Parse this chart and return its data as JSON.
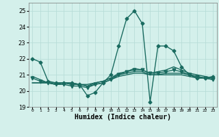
{
  "title": "",
  "xlabel": "Humidex (Indice chaleur)",
  "bg_color": "#d4f0eb",
  "grid_color": "#b8ddd8",
  "line_color": "#1a6b60",
  "xlim": [
    -0.5,
    23.5
  ],
  "ylim": [
    19.0,
    25.5
  ],
  "yticks": [
    19,
    20,
    21,
    22,
    23,
    24,
    25
  ],
  "xticks": [
    0,
    1,
    2,
    3,
    4,
    5,
    6,
    7,
    8,
    9,
    10,
    11,
    12,
    13,
    14,
    15,
    16,
    17,
    18,
    19,
    20,
    21,
    22,
    23
  ],
  "series": [
    {
      "x": [
        0,
        1,
        2,
        3,
        4,
        5,
        6,
        7,
        8,
        9,
        10,
        11,
        12,
        13,
        14,
        15,
        16,
        17,
        18,
        19,
        20,
        21,
        22,
        23
      ],
      "y": [
        22.0,
        21.8,
        20.6,
        20.5,
        20.5,
        20.5,
        20.4,
        19.7,
        19.9,
        20.5,
        21.0,
        22.8,
        24.5,
        25.0,
        24.2,
        19.3,
        22.8,
        22.8,
        22.5,
        21.5,
        21.0,
        20.8,
        20.8,
        20.9
      ],
      "marker": "D",
      "markersize": 2.5,
      "linewidth": 1.0
    },
    {
      "x": [
        0,
        1,
        2,
        3,
        4,
        5,
        6,
        7,
        8,
        9,
        10,
        11,
        12,
        13,
        14,
        15,
        16,
        17,
        18,
        19,
        20,
        21,
        22,
        23
      ],
      "y": [
        20.5,
        20.5,
        20.5,
        20.4,
        20.5,
        20.5,
        20.4,
        20.4,
        20.5,
        20.6,
        20.8,
        21.0,
        21.1,
        21.2,
        21.2,
        21.0,
        21.0,
        21.1,
        21.1,
        21.1,
        21.0,
        20.9,
        20.8,
        20.8
      ],
      "marker": null,
      "markersize": 0,
      "linewidth": 1.0
    },
    {
      "x": [
        0,
        1,
        2,
        3,
        4,
        5,
        6,
        7,
        8,
        9,
        10,
        11,
        12,
        13,
        14,
        15,
        16,
        17,
        18,
        19,
        20,
        21,
        22,
        23
      ],
      "y": [
        20.5,
        20.5,
        20.5,
        20.4,
        20.5,
        20.4,
        20.4,
        20.3,
        20.4,
        20.5,
        20.7,
        20.9,
        21.0,
        21.1,
        21.1,
        21.0,
        21.0,
        21.0,
        21.0,
        21.0,
        20.9,
        20.8,
        20.8,
        20.7
      ],
      "marker": null,
      "markersize": 0,
      "linewidth": 1.0
    },
    {
      "x": [
        0,
        1,
        2,
        3,
        4,
        5,
        6,
        7,
        8,
        9,
        10,
        11,
        12,
        13,
        14,
        15,
        16,
        17,
        18,
        19,
        20,
        21,
        22,
        23
      ],
      "y": [
        20.8,
        20.6,
        20.5,
        20.4,
        20.4,
        20.3,
        20.3,
        20.2,
        20.4,
        20.5,
        20.7,
        21.0,
        21.2,
        21.3,
        21.3,
        21.1,
        21.1,
        21.2,
        21.3,
        21.2,
        21.0,
        20.9,
        20.8,
        20.7
      ],
      "marker": "v",
      "markersize": 3.5,
      "linewidth": 1.0
    },
    {
      "x": [
        0,
        1,
        2,
        3,
        4,
        5,
        6,
        7,
        8,
        9,
        10,
        11,
        12,
        13,
        14,
        15,
        16,
        17,
        18,
        19,
        20,
        21,
        22,
        23
      ],
      "y": [
        20.9,
        20.7,
        20.5,
        20.5,
        20.5,
        20.4,
        20.4,
        20.3,
        20.5,
        20.6,
        20.8,
        21.1,
        21.2,
        21.4,
        21.3,
        21.1,
        21.2,
        21.3,
        21.5,
        21.3,
        21.1,
        21.0,
        20.9,
        20.8
      ],
      "marker": null,
      "markersize": 0,
      "linewidth": 1.0
    }
  ]
}
